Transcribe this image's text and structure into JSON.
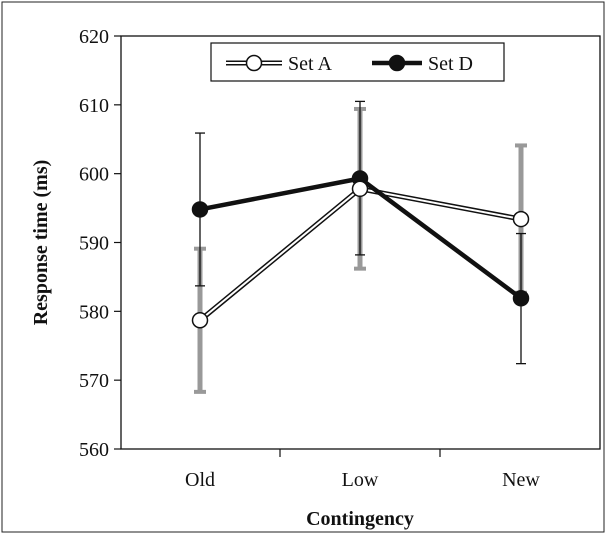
{
  "chart_data": {
    "type": "line",
    "title": "",
    "xlabel": "Contingency",
    "ylabel": "Response time (ms)",
    "categories": [
      "Old",
      "Low",
      "New"
    ],
    "ylim": [
      560,
      620
    ],
    "yticks": [
      560,
      570,
      580,
      590,
      600,
      610,
      620
    ],
    "grid": false,
    "legend_position": "top-center",
    "series": [
      {
        "name": "Set A",
        "values": [
          578.7,
          597.8,
          593.4
        ],
        "error_low": [
          568.3,
          586.2,
          582.7
        ],
        "error_high": [
          589.1,
          609.4,
          604.1
        ],
        "marker": "open-circle",
        "line_color": "#111111",
        "marker_fill": "#ffffff",
        "error_color": "#999999"
      },
      {
        "name": "Set D",
        "values": [
          594.8,
          599.3,
          581.9
        ],
        "error_low": [
          583.7,
          588.2,
          572.4
        ],
        "error_high": [
          605.9,
          610.5,
          591.3
        ],
        "marker": "filled-circle",
        "line_color": "#111111",
        "marker_fill": "#111111",
        "error_color": "#111111"
      }
    ]
  }
}
